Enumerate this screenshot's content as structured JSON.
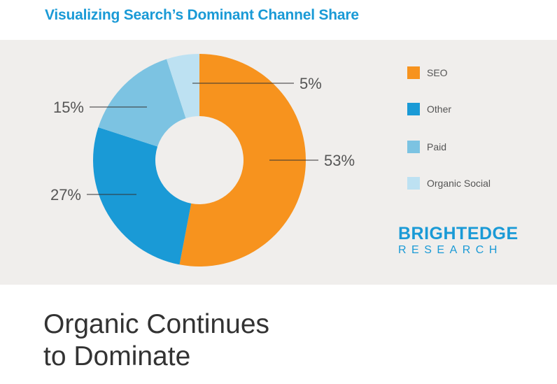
{
  "title": "Visualizing Search’s Dominant Channel Share",
  "chart_data": {
    "type": "pie",
    "variant": "donut",
    "slices": [
      {
        "label": "SEO",
        "value": 53,
        "value_label": "53%",
        "color": "#f7931e"
      },
      {
        "label": "Other",
        "value": 27,
        "value_label": "27%",
        "color": "#1a9ad6"
      },
      {
        "label": "Paid",
        "value": 15,
        "value_label": "15%",
        "color": "#7cc3e2"
      },
      {
        "label": "Organic Social",
        "value": 5,
        "value_label": "5%",
        "color": "#bde1f2"
      }
    ],
    "legend_position": "right"
  },
  "brand": {
    "name": "BRIGHTEDGE",
    "sub": "RESEARCH"
  },
  "headline": {
    "line1": "Organic Continues",
    "line2": "to Dominate"
  }
}
